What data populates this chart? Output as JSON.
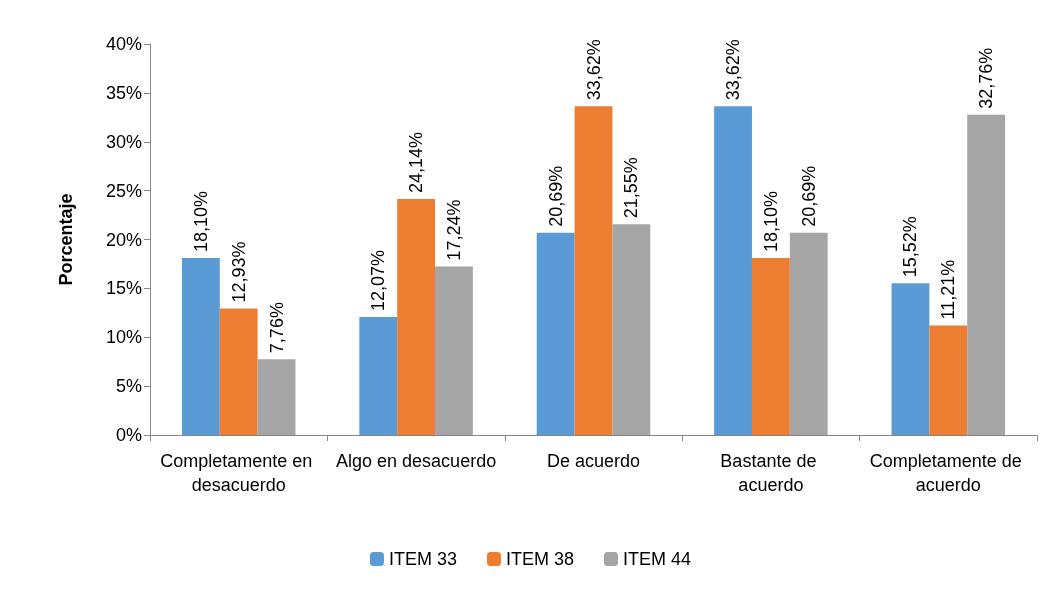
{
  "chart_data": {
    "type": "bar",
    "ylabel": "Porcentaje",
    "categories": [
      "Completamente en desacuerdo",
      "Algo en desacuerdo",
      "De acuerdo",
      "Bastante de acuerdo",
      "Completamente de acuerdo"
    ],
    "series": [
      {
        "name": "ITEM 33",
        "color": "#5b9bd5",
        "values": [
          18.1,
          12.07,
          20.69,
          33.62,
          15.52
        ],
        "value_labels": [
          "18,10%",
          "12,07%",
          "20,69%",
          "33,62%",
          "15,52%"
        ]
      },
      {
        "name": "ITEM 38",
        "color": "#ed7d31",
        "values": [
          12.93,
          24.14,
          33.62,
          18.1,
          11.21
        ],
        "value_labels": [
          "12,93%",
          "24,14%",
          "33,62%",
          "18,10%",
          "11,21%"
        ]
      },
      {
        "name": "ITEM 44",
        "color": "#a5a5a5",
        "values": [
          7.76,
          17.24,
          21.55,
          20.69,
          32.76
        ],
        "value_labels": [
          "7,76%",
          "17,24%",
          "21,55%",
          "20,69%",
          "32,76%"
        ]
      }
    ],
    "ylim": [
      0,
      40
    ],
    "yticks": [
      {
        "value": 0,
        "label": "0%"
      },
      {
        "value": 5,
        "label": "5%"
      },
      {
        "value": 10,
        "label": "10%"
      },
      {
        "value": 15,
        "label": "15%"
      },
      {
        "value": 20,
        "label": "20%"
      },
      {
        "value": 25,
        "label": "25%"
      },
      {
        "value": 30,
        "label": "30%"
      },
      {
        "value": 35,
        "label": "35%"
      },
      {
        "value": 40,
        "label": "40%"
      }
    ],
    "grid": false,
    "legend": "bottom"
  }
}
